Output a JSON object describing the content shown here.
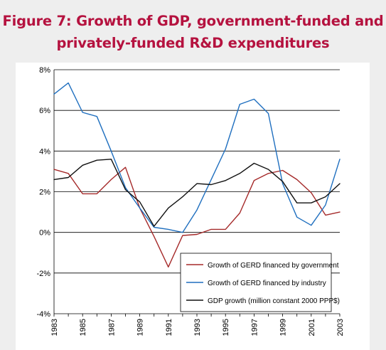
{
  "title_lines": [
    "Figure 7: Growth of GDP, government-funded and",
    "privately-funded R&D expenditures"
  ],
  "colors": {
    "title": "#b5123f",
    "government": "#a52a2a",
    "industry": "#1f6fbf",
    "gdp": "#111111",
    "background": "#eeeeee"
  },
  "chart_data": {
    "type": "line",
    "title": "Figure 7: Growth of GDP, government-funded and privately-funded R&D expenditures",
    "xlabel": "",
    "ylabel": "",
    "ylim": [
      -4,
      8
    ],
    "xlim": [
      1983,
      2003
    ],
    "grid": "horizontal",
    "legend_position": "bottom-right",
    "y_ticks": [
      -4,
      -2,
      0,
      2,
      4,
      6,
      8
    ],
    "y_tick_labels": [
      "-4%",
      "-2%",
      "0%",
      "2%",
      "4%",
      "6%",
      "8%"
    ],
    "x_ticks": [
      1983,
      1985,
      1987,
      1989,
      1991,
      1993,
      1995,
      1997,
      1999,
      2001,
      2003
    ],
    "x_tick_labels": [
      "1983",
      "1985",
      "1987",
      "1989",
      "1991",
      "1993",
      "1995",
      "1997",
      "1999",
      "2001",
      "2003"
    ],
    "x": [
      1983,
      1984,
      1985,
      1986,
      1987,
      1988,
      1989,
      1990,
      1991,
      1992,
      1993,
      1994,
      1995,
      1996,
      1997,
      1998,
      1999,
      2000,
      2001,
      2002,
      2003
    ],
    "series": [
      {
        "name": "Growth of GERD financed by government",
        "color": "#a52a2a",
        "values": [
          3.1,
          2.9,
          1.9,
          1.9,
          2.6,
          3.2,
          1.2,
          -0.2,
          -1.7,
          -0.15,
          -0.1,
          0.15,
          0.15,
          0.95,
          2.55,
          2.9,
          3.05,
          2.6,
          1.95,
          0.85,
          1.0
        ]
      },
      {
        "name": "Growth of GERD financed by industry",
        "color": "#1f6fbf",
        "values": [
          6.8,
          7.35,
          5.9,
          5.7,
          4.0,
          2.2,
          1.2,
          0.25,
          0.15,
          0.0,
          1.1,
          2.6,
          4.1,
          6.3,
          6.55,
          5.85,
          2.4,
          0.75,
          0.35,
          1.35,
          3.6
        ]
      },
      {
        "name": "GDP growth (million constant 2000 PPP$)",
        "color": "#111111",
        "values": [
          2.6,
          2.7,
          3.3,
          3.55,
          3.6,
          2.1,
          1.5,
          0.3,
          1.2,
          1.75,
          2.4,
          2.35,
          2.55,
          2.9,
          3.4,
          3.1,
          2.5,
          1.45,
          1.45,
          1.75,
          2.4
        ]
      }
    ]
  }
}
